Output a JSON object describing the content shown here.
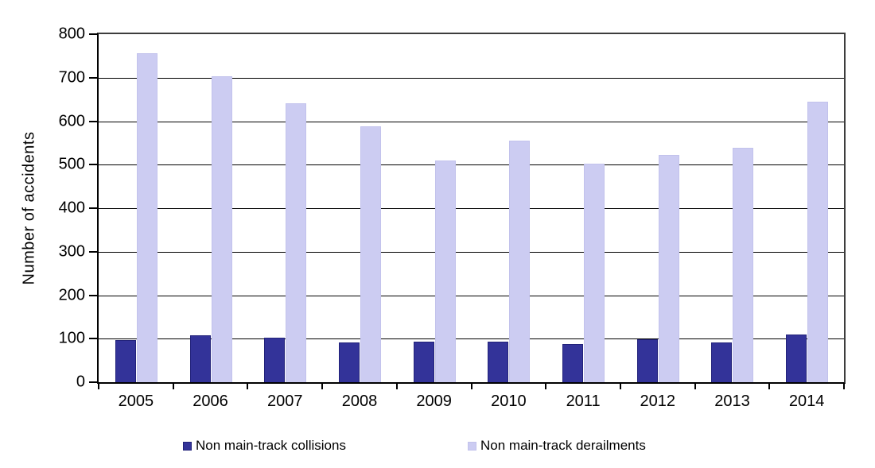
{
  "chart_data": {
    "type": "bar",
    "categories": [
      "2005",
      "2006",
      "2007",
      "2008",
      "2009",
      "2010",
      "2011",
      "2012",
      "2013",
      "2014"
    ],
    "series": [
      {
        "name": "Non main-track collisions",
        "color": "#333399",
        "border_color": "#22227a",
        "values": [
          96,
          107,
          103,
          91,
          93,
          94,
          87,
          99,
          92,
          110
        ]
      },
      {
        "name": "Non main-track derailments",
        "color": "#ccccf2",
        "border_color": "#c2c2ec",
        "values": [
          757,
          703,
          641,
          589,
          509,
          555,
          503,
          522,
          538,
          645
        ]
      }
    ],
    "xlabel": "",
    "ylabel": "Number of accidents",
    "ylim": [
      0,
      800
    ],
    "ytick_step": 100,
    "grid": true,
    "legend_position": "bottom",
    "background": "#ffffff",
    "gridline_color": "#000000",
    "frame_color": "#3d3d3d"
  }
}
